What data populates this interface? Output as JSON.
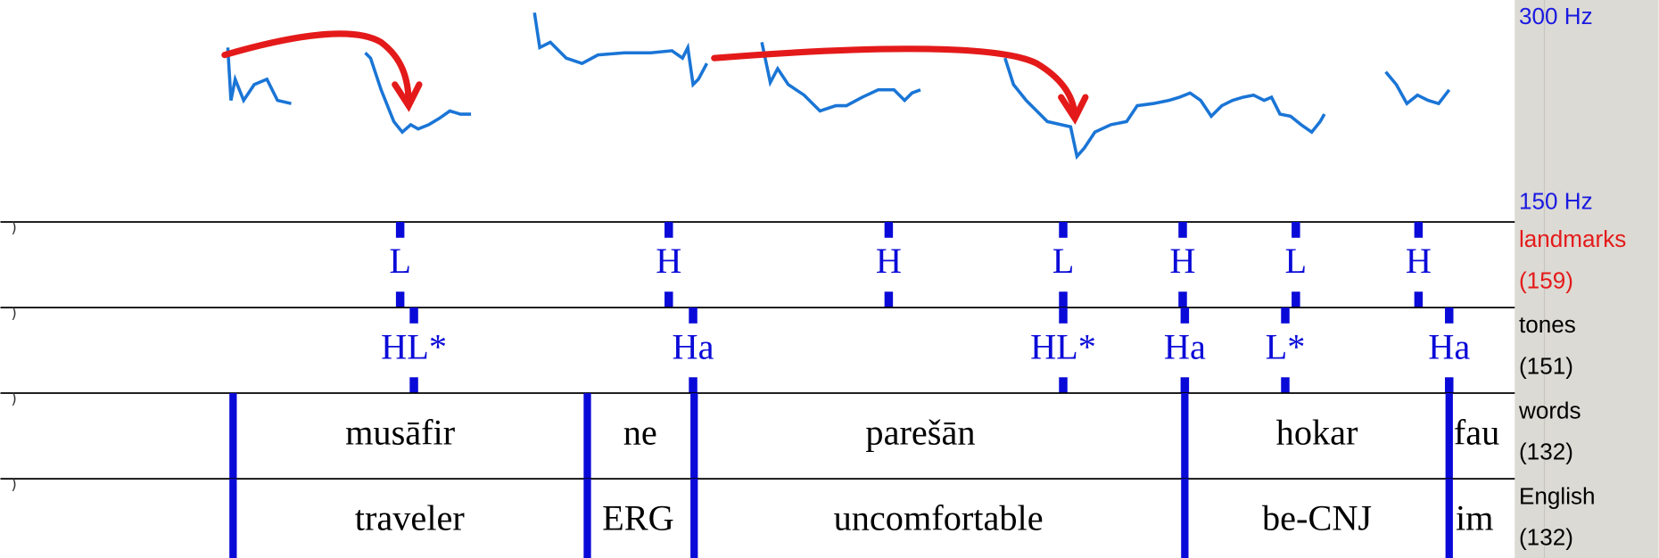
{
  "pitch_axis": {
    "top": "300 Hz",
    "bottom": "150 Hz"
  },
  "tiers": [
    {
      "name": "landmarks",
      "count": "(159)",
      "labels": [
        "L",
        "H",
        "H",
        "L",
        "H",
        "L",
        "H"
      ]
    },
    {
      "name": "tones",
      "count": "(151)",
      "labels": [
        "HL*",
        "Ha",
        "HL*",
        "Ha",
        "L*",
        "Ha"
      ]
    },
    {
      "name": "words",
      "count": "(132)",
      "labels": [
        "musāfir",
        "ne",
        "parešān",
        "hokar",
        "fau"
      ]
    },
    {
      "name": "English",
      "count": "(132)",
      "labels": [
        "traveler",
        "ERG",
        "uncomfortable",
        "be-CNJ",
        "im"
      ]
    }
  ]
}
